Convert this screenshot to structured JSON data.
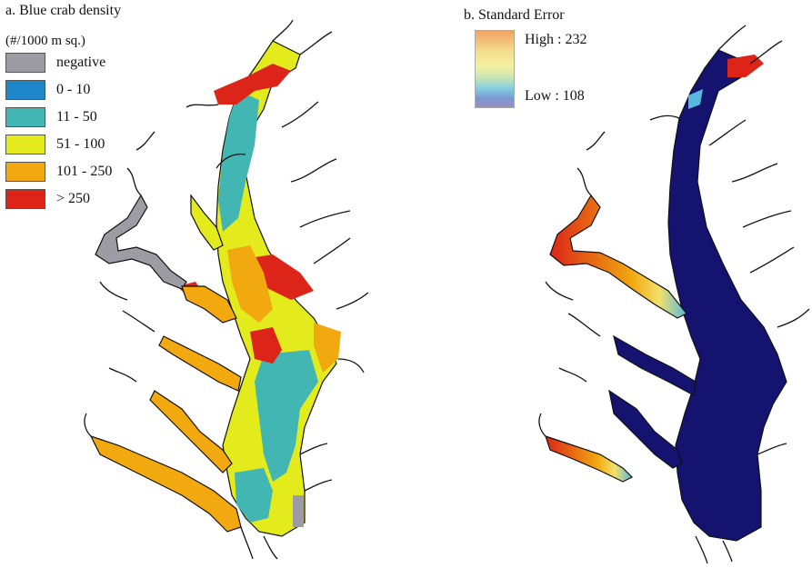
{
  "panel_a": {
    "title": "a. Blue crab density",
    "units": "(#/1000 m sq.)",
    "legend": [
      {
        "label": "negative",
        "color": "#9d9ca4"
      },
      {
        "label": "0 - 10",
        "color": "#1f86c9"
      },
      {
        "label": "11 - 50",
        "color": "#41b6b2"
      },
      {
        "label": "51 - 100",
        "color": "#e4eb1c"
      },
      {
        "label": "101 - 250",
        "color": "#f2a80f"
      },
      {
        "label": "> 250",
        "color": "#dc2418"
      }
    ]
  },
  "panel_b": {
    "title": "b. Standard Error",
    "ramp": {
      "high_label": "High : 232",
      "low_label": "Low : 108",
      "colors": [
        "#f1a261",
        "#f4d98b",
        "#f3f0a0",
        "#cde7b0",
        "#86cfe0",
        "#7a9ad0",
        "#9c8ec2"
      ]
    },
    "map_fill": "#14136f"
  }
}
